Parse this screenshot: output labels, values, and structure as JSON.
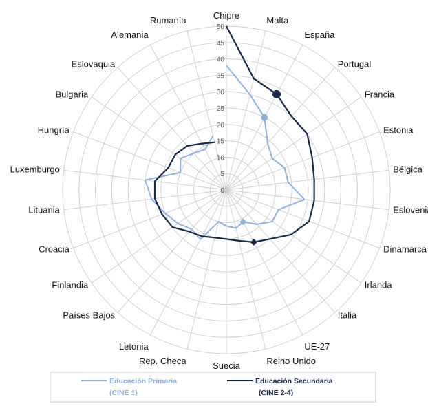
{
  "chart_data": {
    "type": "radar",
    "title": "",
    "categories": [
      "Chipre",
      "Malta",
      "España",
      "Portugal",
      "Francia",
      "Estonia",
      "Bélgica",
      "Eslovenia",
      "Dinamarca",
      "Irlanda",
      "Italia",
      "UE-27",
      "Reino Unido",
      "Suecia",
      "Rep. Checa",
      "Letonia",
      "Países Bajos",
      "Finlandia",
      "Croacia",
      "Lituania",
      "Luxemburgo",
      "Hungría",
      "Bulgaria",
      "Eslovaquia",
      "Alemania",
      "Rumanía"
    ],
    "rlim": [
      0,
      50
    ],
    "rticks": [
      0,
      5,
      10,
      15,
      20,
      25,
      30,
      35,
      40,
      45,
      50
    ],
    "grid": true,
    "legend_position": "bottom",
    "series": [
      {
        "name_line1": "Educación Primaria",
        "name_line2": "(CINE 1)",
        "color": "#8eb2de",
        "values": [
          38,
          30,
          25,
          19,
          17,
          19,
          19,
          24,
          17,
          17,
          14,
          11,
          12,
          11,
          10,
          17,
          16,
          18,
          20,
          23,
          25,
          15,
          17,
          15,
          14,
          17
        ],
        "highlight_index": 2
      },
      {
        "name_line1": "Educación Secundaria",
        "name_line2": "(CINE 2-4)",
        "color": "#15284a",
        "values": [
          50,
          35,
          33,
          30,
          30,
          28,
          27,
          27,
          27,
          24,
          20,
          18,
          16,
          15,
          15,
          16,
          17,
          20,
          21,
          22,
          22,
          19,
          19,
          18,
          16,
          15
        ],
        "highlight_index": 2
      }
    ],
    "highlight_series_index": 1,
    "highlight_category_index": 11
  }
}
